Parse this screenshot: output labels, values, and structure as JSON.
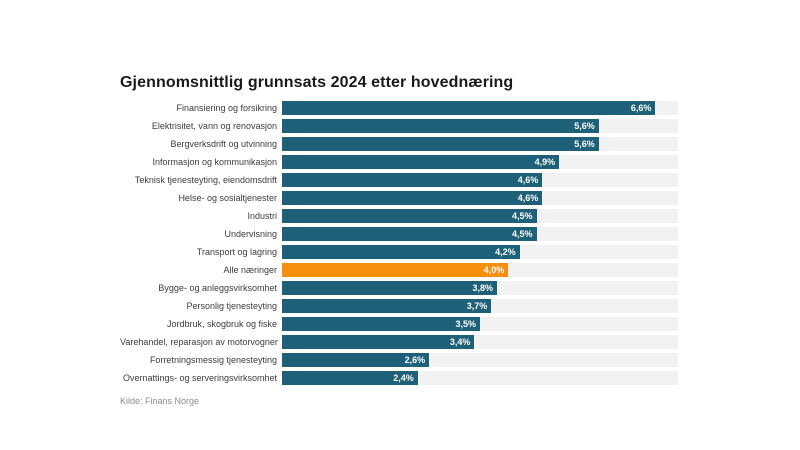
{
  "chart_data": {
    "type": "bar",
    "orientation": "horizontal",
    "title": "Gjennomsnittlig grunnsats 2024 etter hovednæring",
    "source": "Kilde: Finans Norge",
    "categories": [
      "Finansiering og forsikring",
      "Elektrisitet, vann og renovasjon",
      "Bergverksdrift og utvinning",
      "Informasjon og kommunikasjon",
      "Teknisk tjenesteyting, eiendomsdrift",
      "Helse- og sosialtjenester",
      "Industri",
      "Undervisning",
      "Transport og lagring",
      "Alle næringer",
      "Bygge- og anleggsvirksomhet",
      "Personlig tjenesteyting",
      "Jordbruk, skogbruk og fiske",
      "Varehandel, reparasjon av motorvogner",
      "Forretningsmessig tjenesteyting",
      "Overnattings- og serveringsvirksomhet"
    ],
    "values": [
      6.6,
      5.6,
      5.6,
      4.9,
      4.6,
      4.6,
      4.5,
      4.5,
      4.2,
      4.0,
      3.8,
      3.7,
      3.5,
      3.4,
      2.6,
      2.4
    ],
    "value_labels": [
      "6,6%",
      "5,6%",
      "5,6%",
      "4,9%",
      "4,6%",
      "4,6%",
      "4,5%",
      "4,5%",
      "4,2%",
      "4,0%",
      "3,8%",
      "3,7%",
      "3,5%",
      "3,4%",
      "2,6%",
      "2,4%"
    ],
    "highlight_index": 9,
    "highlight_category": "Alle næringer",
    "xlim": [
      0,
      7
    ],
    "legend": false,
    "grid": false,
    "colors": {
      "bar": "#1e6078",
      "highlight": "#f78f0e",
      "track": "#f2f2f2",
      "title_text": "#1a1a1a",
      "category_text": "#3c3c3c",
      "value_text": "#ffffff",
      "source_text": "#8c8c8c",
      "background": "#ffffff"
    }
  }
}
